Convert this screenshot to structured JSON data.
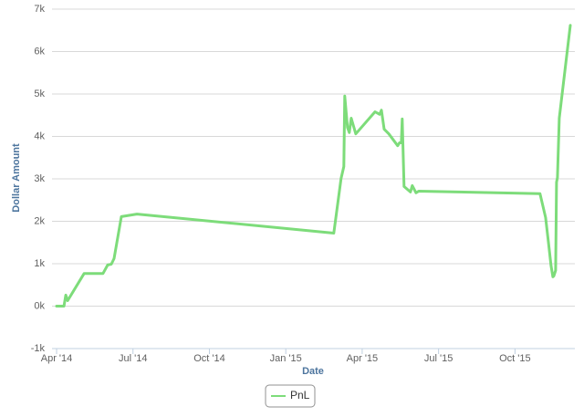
{
  "chart_data": {
    "type": "line",
    "x_label": "Date",
    "y_label": "Dollar Amount",
    "x": [
      2014.25,
      2014.274,
      2014.28,
      2014.286,
      2014.34,
      2014.402,
      2014.417,
      2014.429,
      2014.438,
      2014.462,
      2014.513,
      2015.157,
      2015.181,
      2015.19,
      2015.193,
      2015.202,
      2015.208,
      2015.214,
      2015.229,
      2015.292,
      2015.307,
      2015.313,
      2015.322,
      2015.337,
      2015.366,
      2015.372,
      2015.378,
      2015.381,
      2015.387,
      2015.408,
      2015.414,
      2015.426,
      2015.435,
      2015.832,
      2015.85,
      2015.859,
      2015.868,
      2015.874,
      2015.877,
      2015.883,
      2015.886,
      2015.889,
      2015.895,
      2015.931
    ],
    "series": [
      {
        "name": "PnL",
        "color": "#7ddc7a",
        "values": [
          0,
          0,
          260,
          130,
          770,
          770,
          970,
          990,
          1120,
          2110,
          2170,
          1720,
          3010,
          3290,
          4950,
          4210,
          4090,
          4430,
          4060,
          4580,
          4520,
          4620,
          4170,
          4060,
          3780,
          3850,
          3850,
          4410,
          2820,
          2690,
          2840,
          2670,
          2710,
          2650,
          2090,
          1530,
          950,
          690,
          710,
          840,
          2920,
          3030,
          4430,
          6620
        ]
      }
    ],
    "xlim": [
      2014.235,
      2015.946
    ],
    "xticks": [
      {
        "value": 2014.25,
        "label": "Apr '14"
      },
      {
        "value": 2014.5,
        "label": "Jul '14"
      },
      {
        "value": 2014.75,
        "label": "Oct '14"
      },
      {
        "value": 2015.0,
        "label": "Jan '15"
      },
      {
        "value": 2015.25,
        "label": "Apr '15"
      },
      {
        "value": 2015.5,
        "label": "Jul '15"
      },
      {
        "value": 2015.75,
        "label": "Oct '15"
      }
    ],
    "ylim": [
      -1000,
      7000
    ],
    "yticks": [
      {
        "value": -1000,
        "label": "-1k"
      },
      {
        "value": 0,
        "label": "0k"
      },
      {
        "value": 1000,
        "label": "1k"
      },
      {
        "value": 2000,
        "label": "2k"
      },
      {
        "value": 3000,
        "label": "3k"
      },
      {
        "value": 4000,
        "label": "4k"
      },
      {
        "value": 5000,
        "label": "5k"
      },
      {
        "value": 6000,
        "label": "6k"
      },
      {
        "value": 7000,
        "label": "7k"
      }
    ],
    "grid": true
  }
}
